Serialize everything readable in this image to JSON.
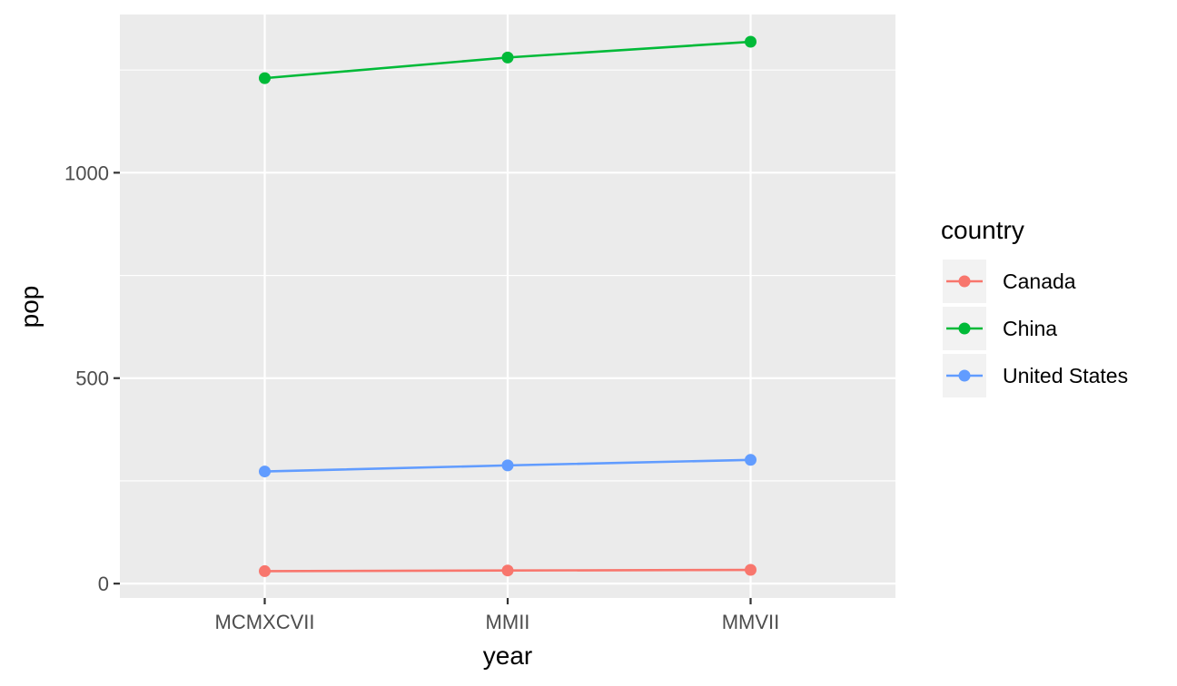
{
  "chart_data": {
    "type": "line",
    "categories": [
      "MCMXCVII",
      "MMII",
      "MMVII"
    ],
    "series": [
      {
        "name": "Canada",
        "color": "#F8766D",
        "values": [
          30.3,
          31.9,
          33.4
        ]
      },
      {
        "name": "China",
        "color": "#00BA38",
        "values": [
          1230.1,
          1280.4,
          1318.7
        ]
      },
      {
        "name": "United States",
        "color": "#619CFF",
        "values": [
          272.9,
          287.7,
          301.1
        ]
      }
    ],
    "xlabel": "year",
    "ylabel": "pop",
    "yticks": [
      0,
      500,
      1000
    ],
    "ylim": [
      -35,
      1385
    ],
    "grid": true,
    "legend": {
      "title": "country",
      "position": "right"
    }
  }
}
